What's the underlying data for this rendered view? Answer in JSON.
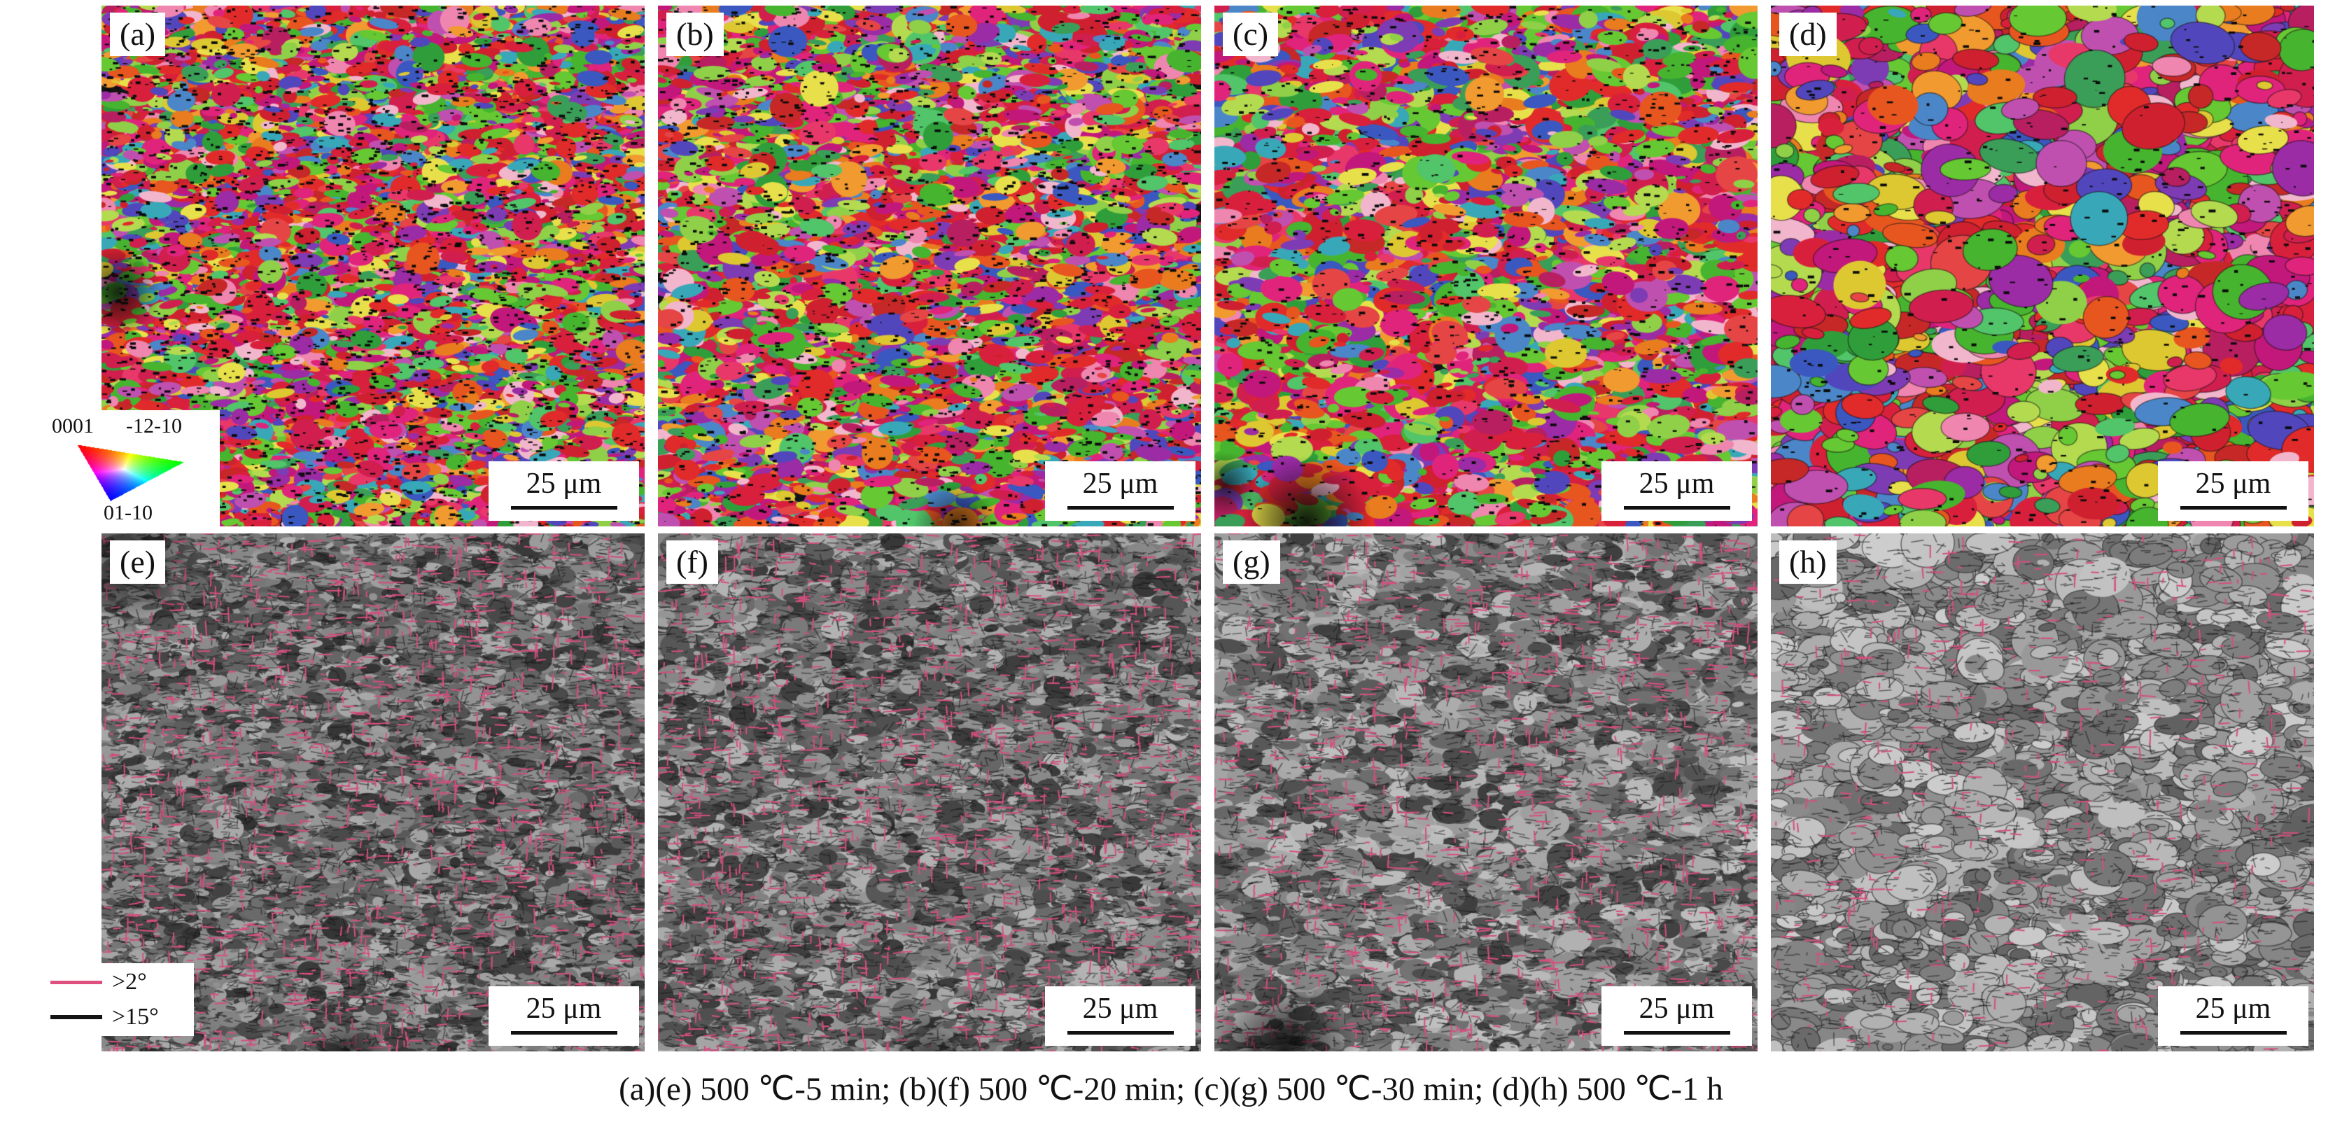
{
  "figure": {
    "caption": "(a)(e) 500 ℃-5 min; (b)(f) 500 ℃-20 min; (c)(g) 500 ℃-30 min; (d)(h) 500 ℃-1 h",
    "scale_bar_label": "25 μm",
    "panels": [
      {
        "id": "a",
        "label": "(a)",
        "row": "ipf-orientation-map"
      },
      {
        "id": "b",
        "label": "(b)",
        "row": "ipf-orientation-map"
      },
      {
        "id": "c",
        "label": "(c)",
        "row": "ipf-orientation-map"
      },
      {
        "id": "d",
        "label": "(d)",
        "row": "ipf-orientation-map"
      },
      {
        "id": "e",
        "label": "(e)",
        "row": "band-contrast-boundary-map"
      },
      {
        "id": "f",
        "label": "(f)",
        "row": "band-contrast-boundary-map"
      },
      {
        "id": "g",
        "label": "(g)",
        "row": "band-contrast-boundary-map"
      },
      {
        "id": "h",
        "label": "(h)",
        "row": "band-contrast-boundary-map"
      }
    ],
    "ipf_key": {
      "c0001": "0001",
      "c1210": "-12-10",
      "c0110": "01-10",
      "corner_colors": {
        "0001": "#ff0000",
        "-12-10": "#00ff00",
        "01-10": "#0000ff"
      }
    },
    "boundary_key": [
      {
        "label": ">2°",
        "color": "#e0507e"
      },
      {
        "label": ">15°",
        "color": "#141414"
      }
    ]
  },
  "render": {
    "ipf_background": "#141414",
    "bc_pink": "#d44f7f",
    "bc_dark": "#1a1a1a",
    "ipf_palette": [
      "#cf2030",
      "#e12a2a",
      "#d01f4e",
      "#e0247c",
      "#c2187c",
      "#e8386a",
      "#d8203c",
      "#b81f60",
      "#e54545",
      "#c62828",
      "#d01f4e",
      "#e0247c",
      "#cf2030",
      "#e12a2a",
      "#d8203c",
      "#c2187c",
      "#46b42e",
      "#66c832",
      "#2f9e3a",
      "#8fd048",
      "#b4da50",
      "#52c46a",
      "#3a9e58",
      "#66c832",
      "#46b42e",
      "#8fd048",
      "#e87c1e",
      "#f09a30",
      "#e85620",
      "#ddc832",
      "#e8e04a",
      "#3a58c0",
      "#5246bc",
      "#7e3cb4",
      "#9c2ba6",
      "#4a86c8",
      "#38a8b8",
      "#c050b0",
      "#ef86b0",
      "#f2b6cc"
    ],
    "panels": [
      {
        "type": "ipf",
        "seed": 101,
        "grain": 13,
        "count": 9500,
        "speck": 2800,
        "elong": 2.6,
        "blobs": [
          [
            0.03,
            0.55,
            0.08,
            0.8
          ]
        ]
      },
      {
        "type": "ipf",
        "seed": 202,
        "grain": 15,
        "count": 8300,
        "speck": 2300,
        "elong": 2.8,
        "blobs": [
          [
            0.55,
            1.0,
            0.08,
            0.7
          ]
        ]
      },
      {
        "type": "ipf",
        "seed": 303,
        "grain": 17,
        "count": 7200,
        "speck": 1600,
        "elong": 2.3,
        "blobs": [
          [
            0.17,
            0.99,
            0.12,
            0.9
          ],
          [
            0.02,
            0.92,
            0.06,
            0.7
          ]
        ]
      },
      {
        "type": "ipf",
        "seed": 404,
        "grain": 25,
        "count": 4600,
        "speck": 700,
        "elong": 1.35,
        "outline": true,
        "blobs": []
      },
      {
        "type": "bc",
        "seed": 505,
        "grain": 11,
        "count": 9000,
        "base": 50,
        "range": 125,
        "pink": 1700,
        "elong": 2.2,
        "blobs": [
          [
            0.06,
            0.06,
            0.12,
            0.75
          ],
          [
            0.45,
            1.0,
            0.08,
            0.6
          ]
        ]
      },
      {
        "type": "bc",
        "seed": 606,
        "grain": 12,
        "count": 8600,
        "base": 55,
        "range": 125,
        "pink": 1550,
        "elong": 2.2,
        "blobs": [
          [
            0.5,
            1.02,
            0.09,
            0.7
          ]
        ]
      },
      {
        "type": "bc",
        "seed": 707,
        "grain": 14,
        "count": 7400,
        "base": 62,
        "range": 130,
        "pink": 1250,
        "elong": 2.0,
        "blobs": [
          [
            0.13,
            1.0,
            0.13,
            0.9
          ]
        ]
      },
      {
        "type": "bc",
        "seed": 808,
        "grain": 21,
        "count": 5200,
        "base": 96,
        "range": 110,
        "pink": 620,
        "elong": 1.4,
        "outline": true,
        "blobs": []
      }
    ]
  }
}
